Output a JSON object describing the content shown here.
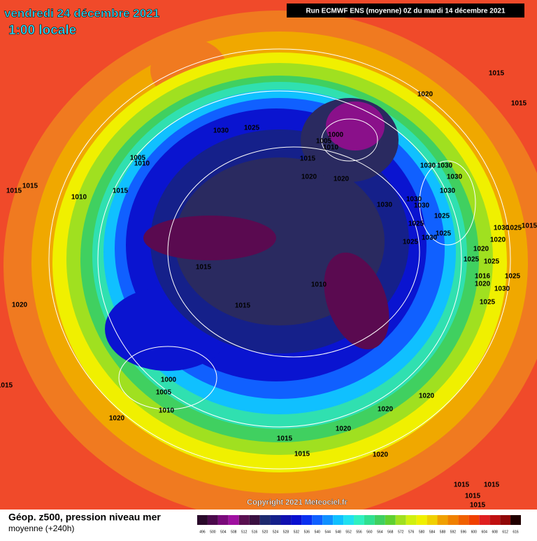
{
  "header": {
    "date": "vendredi 24 décembre 2021",
    "time": "1:00 locale",
    "run": "Run ECMWF ENS (moyenne) 0Z du mardi 14 décembre 2021"
  },
  "copyright": "Copyright 2021 Meteociel.fr",
  "legend": {
    "title": "Géop. z500, pression niveau mer",
    "subtitle": "moyenne  (+240h)",
    "colorbar": [
      "496",
      "500",
      "504",
      "508",
      "512",
      "516",
      "520",
      "524",
      "528",
      "532",
      "536",
      "540",
      "544",
      "548",
      "552",
      "556",
      "560",
      "564",
      "568",
      "572",
      "576",
      "580",
      "584",
      "588",
      "592",
      "596",
      "600",
      "604",
      "608",
      "612",
      "616"
    ]
  },
  "isobar_labels": [
    "1015",
    "1015",
    "1020",
    "1030",
    "1025",
    "1000",
    "1005",
    "1010",
    "1015",
    "1020",
    "1020",
    "1030",
    "1030",
    "1030",
    "1030",
    "1030",
    "1030",
    "1030",
    "1025",
    "1025",
    "1025",
    "1030",
    "1025",
    "1030",
    "1025",
    "1015",
    "1020",
    "1020",
    "1025",
    "1025",
    "1025",
    "1016",
    "1020",
    "1030",
    "1025",
    "1005",
    "1010",
    "1015",
    "1015",
    "1010",
    "1015",
    "1015",
    "1010",
    "1015",
    "1020",
    "1000",
    "1005",
    "1010",
    "1020",
    "1015",
    "1020",
    "1020",
    "1020",
    "1015",
    "1015",
    "1020",
    "1015",
    "1015",
    "1015",
    "1015"
  ]
}
